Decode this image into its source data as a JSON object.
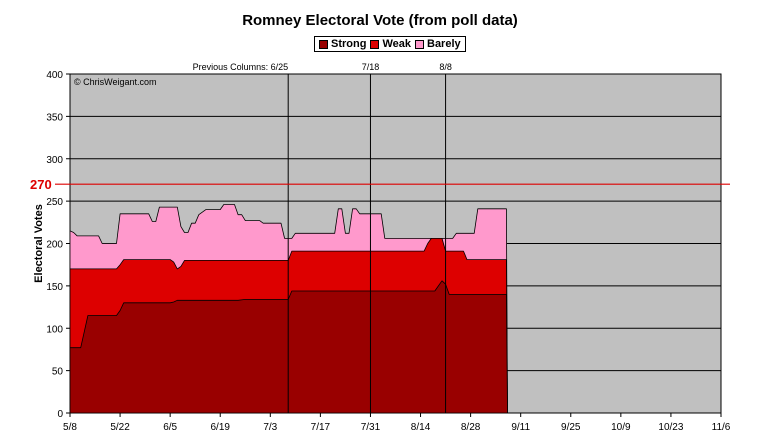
{
  "chart_data": {
    "type": "area",
    "title": "Romney Electoral Vote (from poll data)",
    "ylabel": "Electoral Votes",
    "xlabel": "",
    "ylim": [
      0,
      400
    ],
    "y_ticks": [
      0,
      50,
      100,
      150,
      200,
      250,
      300,
      350,
      400
    ],
    "x_ticks": [
      "5/8",
      "5/22",
      "6/5",
      "6/19",
      "7/3",
      "7/17",
      "7/31",
      "8/14",
      "8/28",
      "9/11",
      "9/25",
      "10/9",
      "10/23",
      "11/6"
    ],
    "x_start": "5/8",
    "x_end": "11/6",
    "grid": true,
    "legend_position": "top",
    "watermark": "© ChrisWeigant.com",
    "threshold": {
      "value": 270,
      "label": "270",
      "color": "#dd0000"
    },
    "markers": [
      {
        "day": 61,
        "label": "Previous Columns: 6/25"
      },
      {
        "day": 84,
        "label": "7/18"
      },
      {
        "day": 105,
        "label": "8/8"
      }
    ],
    "series": [
      {
        "name": "Strong",
        "color": "#990000",
        "points": [
          [
            0,
            77
          ],
          [
            3,
            77
          ],
          [
            5,
            115
          ],
          [
            13,
            115
          ],
          [
            14,
            121
          ],
          [
            15,
            130
          ],
          [
            28,
            130
          ],
          [
            29,
            131
          ],
          [
            30,
            133
          ],
          [
            47,
            133
          ],
          [
            49,
            134
          ],
          [
            51,
            134
          ],
          [
            58,
            134
          ],
          [
            61,
            134
          ],
          [
            62,
            144
          ],
          [
            80,
            144
          ],
          [
            90,
            144
          ],
          [
            102,
            144
          ],
          [
            103,
            150
          ],
          [
            104,
            156
          ],
          [
            105,
            152
          ],
          [
            106,
            140
          ],
          [
            108,
            140
          ],
          [
            114,
            140
          ],
          [
            121,
            140
          ],
          [
            122,
            140
          ]
        ]
      },
      {
        "name": "Weak",
        "color": "#dd0000",
        "points": [
          [
            0,
            170
          ],
          [
            9,
            170
          ],
          [
            11,
            170
          ],
          [
            13,
            170
          ],
          [
            14,
            175
          ],
          [
            15,
            181
          ],
          [
            28,
            181
          ],
          [
            29,
            178
          ],
          [
            30,
            170
          ],
          [
            31,
            173
          ],
          [
            32,
            180
          ],
          [
            47,
            180
          ],
          [
            58,
            180
          ],
          [
            61,
            180
          ],
          [
            62,
            191
          ],
          [
            80,
            191
          ],
          [
            85,
            191
          ],
          [
            90,
            191
          ],
          [
            99,
            191
          ],
          [
            100,
            200
          ],
          [
            101,
            206
          ],
          [
            104,
            206
          ],
          [
            105,
            191
          ],
          [
            108,
            191
          ],
          [
            110,
            191
          ],
          [
            111,
            181
          ],
          [
            114,
            181
          ],
          [
            121,
            181
          ],
          [
            122,
            181
          ]
        ]
      },
      {
        "name": "Barely",
        "color": "#ff99cc",
        "points": [
          [
            0,
            215
          ],
          [
            1,
            213
          ],
          [
            2,
            209
          ],
          [
            8,
            209
          ],
          [
            9,
            200
          ],
          [
            12,
            200
          ],
          [
            13,
            200
          ],
          [
            14,
            235
          ],
          [
            20,
            235
          ],
          [
            22,
            235
          ],
          [
            23,
            226
          ],
          [
            24,
            226
          ],
          [
            25,
            243
          ],
          [
            30,
            243
          ],
          [
            31,
            220
          ],
          [
            32,
            213
          ],
          [
            33,
            213
          ],
          [
            34,
            224
          ],
          [
            35,
            224
          ],
          [
            36,
            234
          ],
          [
            38,
            240
          ],
          [
            40,
            240
          ],
          [
            42,
            240
          ],
          [
            43,
            246
          ],
          [
            46,
            246
          ],
          [
            47,
            234
          ],
          [
            48,
            234
          ],
          [
            49,
            227
          ],
          [
            52,
            227
          ],
          [
            53,
            227
          ],
          [
            54,
            224
          ],
          [
            59,
            224
          ],
          [
            60,
            206
          ],
          [
            62,
            206
          ],
          [
            63,
            212
          ],
          [
            68,
            212
          ],
          [
            74,
            212
          ],
          [
            75,
            241
          ],
          [
            76,
            241
          ],
          [
            77,
            212
          ],
          [
            78,
            212
          ],
          [
            79,
            241
          ],
          [
            80,
            241
          ],
          [
            81,
            235
          ],
          [
            87,
            235
          ],
          [
            88,
            206
          ],
          [
            99,
            206
          ],
          [
            100,
            206
          ],
          [
            104,
            206
          ],
          [
            105,
            206
          ],
          [
            107,
            206
          ],
          [
            108,
            212
          ],
          [
            111,
            212
          ],
          [
            113,
            212
          ],
          [
            114,
            241
          ],
          [
            121,
            241
          ],
          [
            122,
            241
          ]
        ]
      }
    ]
  }
}
